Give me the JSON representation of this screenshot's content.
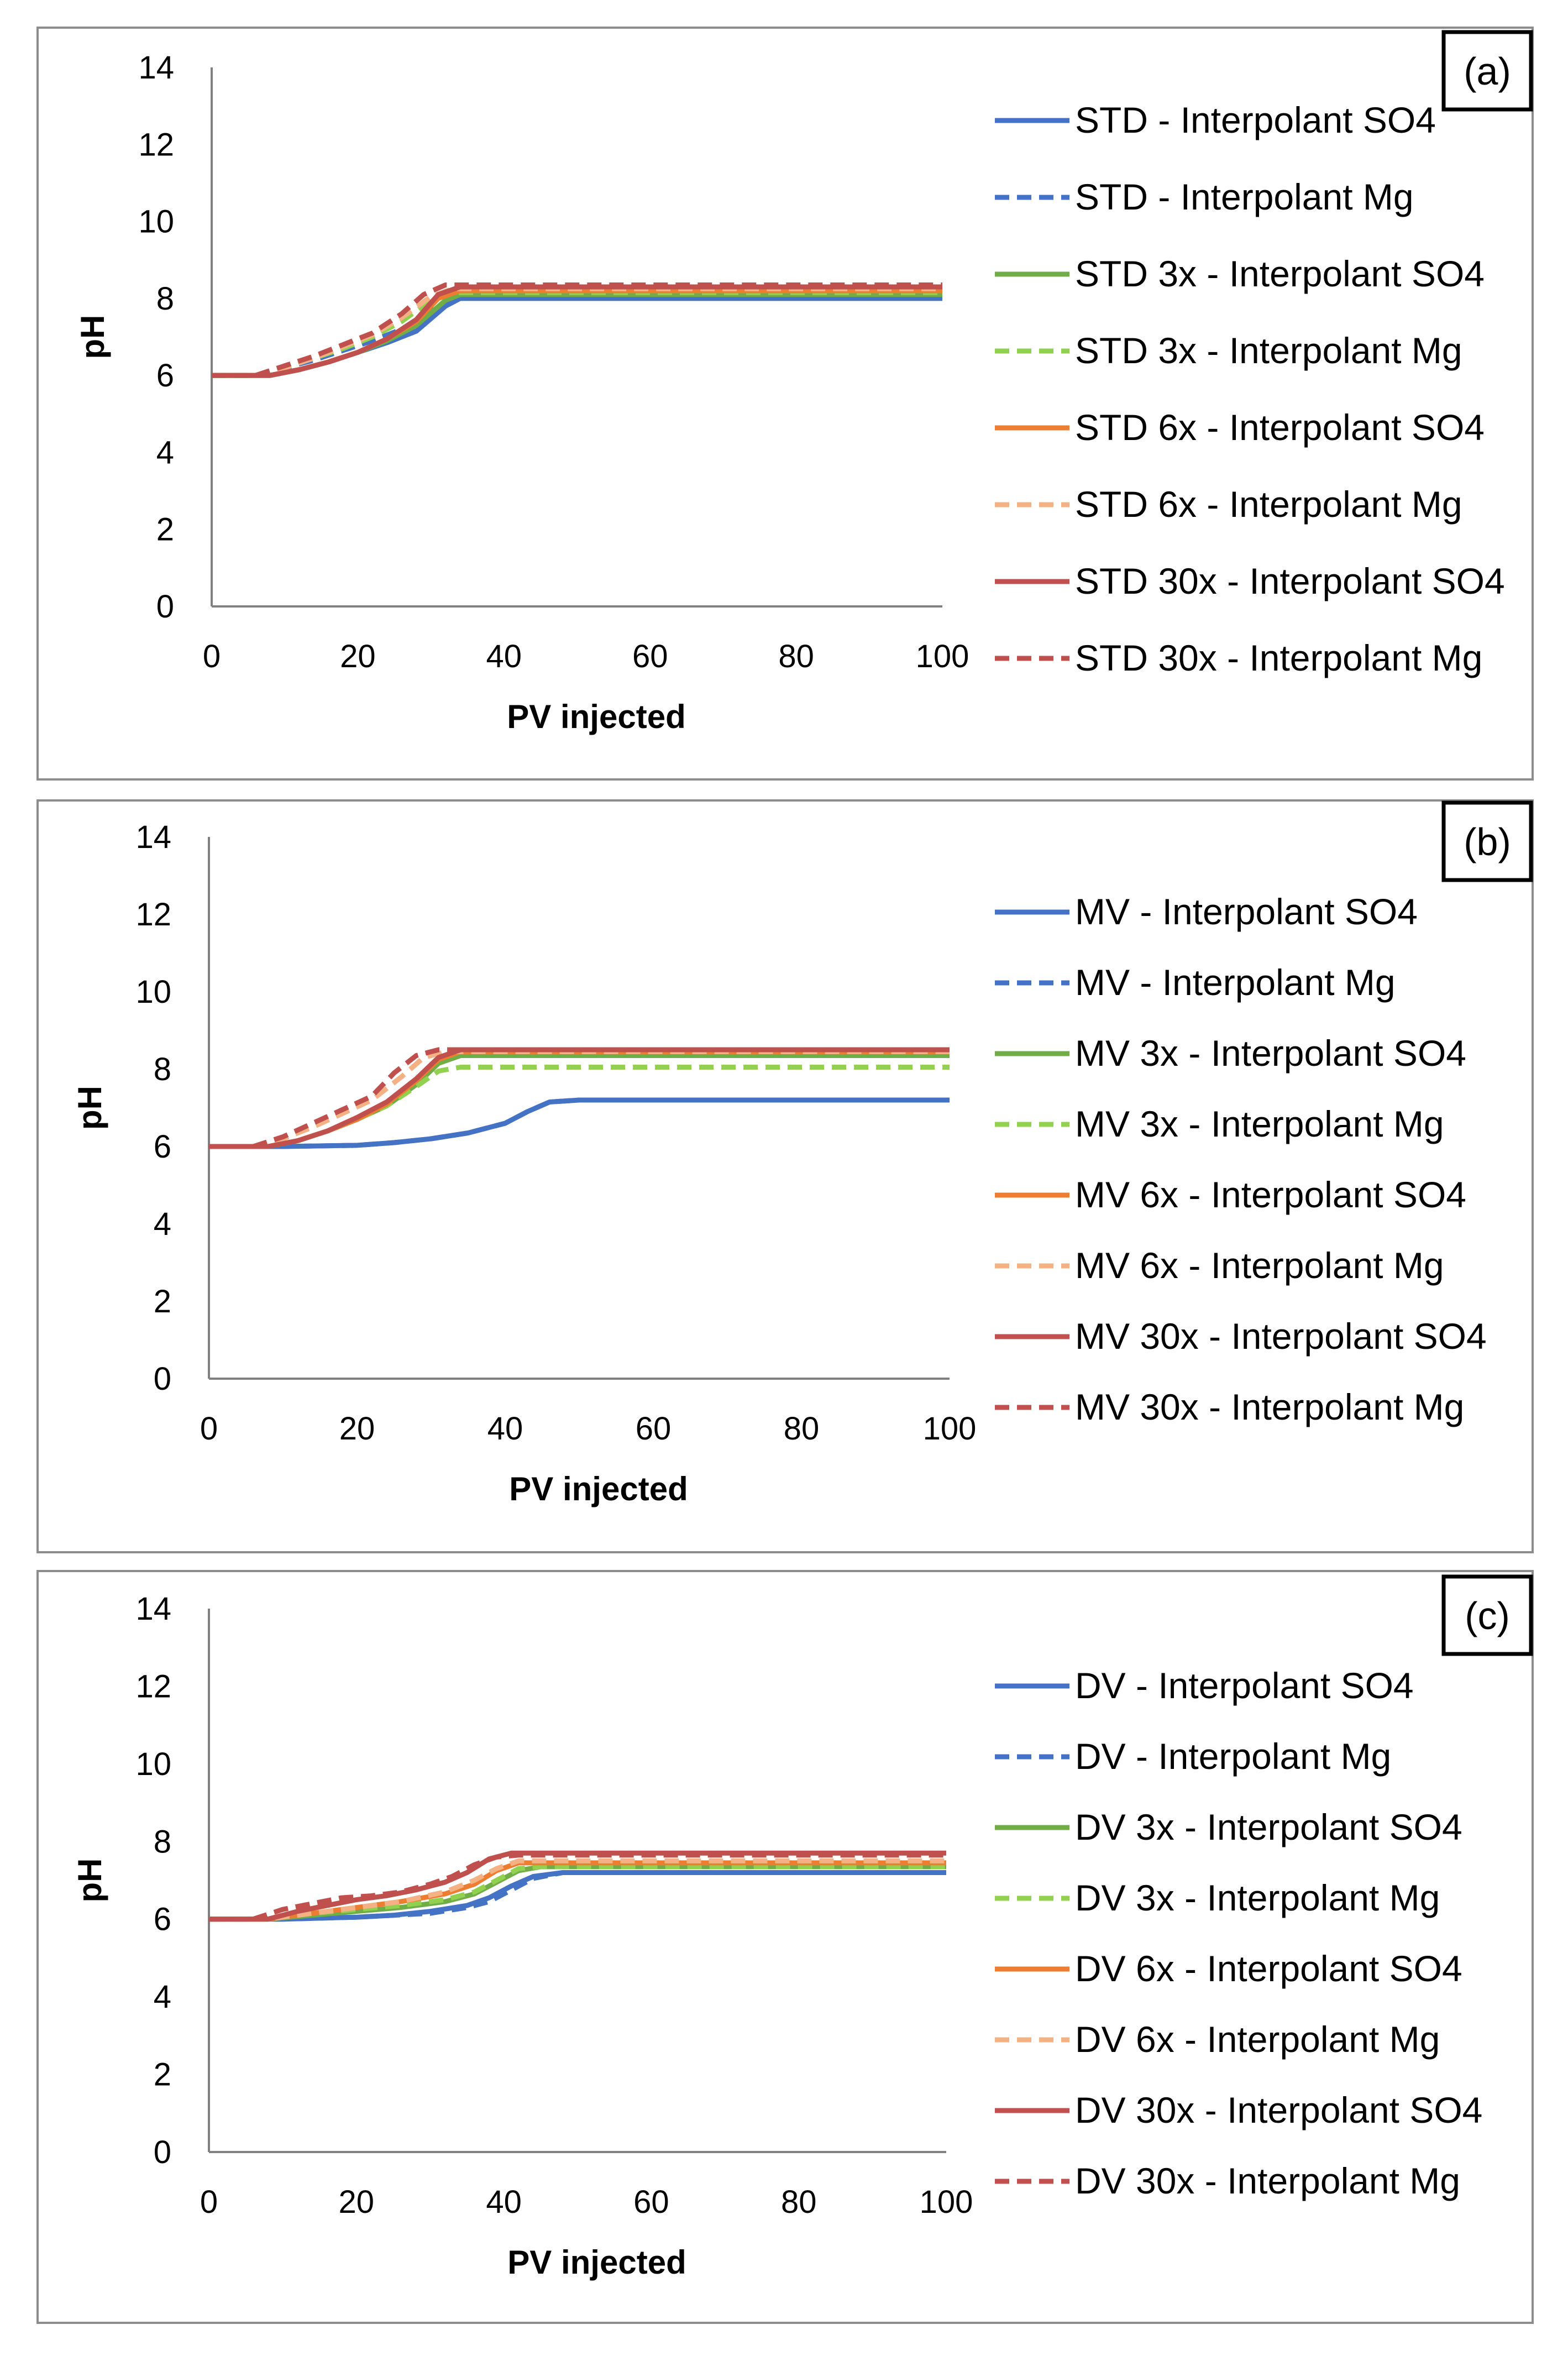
{
  "colors": {
    "blue": "#4472C4",
    "green": "#70AD47",
    "orange": "#ED7D31",
    "red": "#C0504D"
  },
  "chart_data": [
    {
      "type": "line",
      "panel_label": "(a)",
      "xlabel": "PV injected",
      "ylabel": "pH",
      "xlim": [
        0,
        100
      ],
      "ylim": [
        0,
        14
      ],
      "xticks": [
        "0",
        "20",
        "40",
        "60",
        "80",
        "100"
      ],
      "yticks": [
        "0",
        "2",
        "4",
        "6",
        "8",
        "10",
        "12",
        "14"
      ],
      "legend_position": "right",
      "series": [
        {
          "name": "STD - Interpolant SO4",
          "color": "#4472C4",
          "dash": false,
          "x": [
            0,
            8,
            12,
            16,
            20,
            24,
            28,
            32,
            34,
            36,
            100
          ],
          "y": [
            6.0,
            6.0,
            6.15,
            6.35,
            6.6,
            6.85,
            7.15,
            7.8,
            8.0,
            8.0,
            8.0
          ]
        },
        {
          "name": "STD - Interpolant Mg",
          "color": "#4472C4",
          "dash": true,
          "x": [
            0,
            6,
            10,
            14,
            18,
            22,
            26,
            30,
            33,
            35,
            100
          ],
          "y": [
            6.0,
            6.0,
            6.2,
            6.4,
            6.65,
            6.9,
            7.2,
            7.7,
            8.0,
            8.05,
            8.05
          ]
        },
        {
          "name": "STD 3x - Interpolant SO4",
          "color": "#70AD47",
          "dash": false,
          "x": [
            0,
            8,
            12,
            16,
            20,
            24,
            28,
            32,
            34,
            100
          ],
          "y": [
            6.0,
            6.0,
            6.15,
            6.35,
            6.6,
            6.9,
            7.3,
            7.95,
            8.1,
            8.1
          ]
        },
        {
          "name": "STD 3x - Interpolant Mg",
          "color": "#92D050",
          "dash": true,
          "x": [
            0,
            6,
            10,
            14,
            18,
            22,
            26,
            30,
            33,
            100
          ],
          "y": [
            6.0,
            6.0,
            6.2,
            6.45,
            6.7,
            7.0,
            7.4,
            7.95,
            8.15,
            8.15
          ]
        },
        {
          "name": "STD 6x - Interpolant SO4",
          "color": "#ED7D31",
          "dash": false,
          "x": [
            0,
            8,
            12,
            16,
            20,
            24,
            28,
            31,
            34,
            100
          ],
          "y": [
            6.0,
            6.0,
            6.15,
            6.35,
            6.6,
            6.95,
            7.4,
            8.0,
            8.2,
            8.2
          ]
        },
        {
          "name": "STD 6x - Interpolant Mg",
          "color": "#F4B183",
          "dash": true,
          "x": [
            0,
            6,
            10,
            14,
            18,
            22,
            26,
            30,
            33,
            100
          ],
          "y": [
            6.0,
            6.0,
            6.2,
            6.45,
            6.75,
            7.05,
            7.5,
            8.05,
            8.25,
            8.25
          ]
        },
        {
          "name": "STD 30x - Interpolant SO4",
          "color": "#C0504D",
          "dash": false,
          "x": [
            0,
            8,
            12,
            16,
            20,
            24,
            28,
            31,
            34,
            100
          ],
          "y": [
            6.0,
            6.0,
            6.15,
            6.35,
            6.6,
            6.95,
            7.45,
            8.1,
            8.3,
            8.3
          ]
        },
        {
          "name": "STD 30x - Interpolant Mg",
          "color": "#C0504D",
          "dash": true,
          "x": [
            0,
            6,
            10,
            14,
            18,
            22,
            26,
            29,
            32,
            100
          ],
          "y": [
            6.0,
            6.0,
            6.25,
            6.5,
            6.8,
            7.1,
            7.6,
            8.1,
            8.35,
            8.35
          ]
        }
      ]
    },
    {
      "type": "line",
      "panel_label": "(b)",
      "xlabel": "PV injected",
      "ylabel": "pH",
      "xlim": [
        0,
        100
      ],
      "ylim": [
        0,
        14
      ],
      "xticks": [
        "0",
        "20",
        "40",
        "60",
        "80",
        "100"
      ],
      "yticks": [
        "0",
        "2",
        "4",
        "6",
        "8",
        "10",
        "12",
        "14"
      ],
      "legend_position": "right",
      "series": [
        {
          "name": "MV - Interpolant SO4",
          "color": "#4472C4",
          "dash": false,
          "x": [
            0,
            10,
            20,
            25,
            30,
            35,
            40,
            43,
            46,
            50,
            100
          ],
          "y": [
            6.0,
            6.0,
            6.03,
            6.1,
            6.2,
            6.35,
            6.6,
            6.9,
            7.15,
            7.2,
            7.2
          ]
        },
        {
          "name": "MV - Interpolant Mg",
          "color": "#4472C4",
          "dash": true,
          "x": [
            0,
            10,
            20,
            25,
            30,
            35,
            40,
            43,
            46,
            50,
            100
          ],
          "y": [
            6.0,
            6.0,
            6.03,
            6.1,
            6.2,
            6.35,
            6.6,
            6.9,
            7.15,
            7.2,
            7.2
          ]
        },
        {
          "name": "MV 3x - Interpolant SO4",
          "color": "#70AD47",
          "dash": false,
          "x": [
            0,
            8,
            12,
            16,
            20,
            24,
            28,
            31,
            34,
            100
          ],
          "y": [
            6.0,
            6.0,
            6.15,
            6.4,
            6.7,
            7.05,
            7.6,
            8.15,
            8.35,
            8.35
          ]
        },
        {
          "name": "MV 3x - Interpolant Mg",
          "color": "#92D050",
          "dash": true,
          "x": [
            0,
            8,
            12,
            16,
            20,
            24,
            28,
            31,
            34,
            100
          ],
          "y": [
            6.0,
            6.0,
            6.15,
            6.4,
            6.7,
            7.05,
            7.55,
            7.95,
            8.05,
            8.05
          ]
        },
        {
          "name": "MV 6x - Interpolant SO4",
          "color": "#ED7D31",
          "dash": false,
          "x": [
            0,
            8,
            12,
            16,
            20,
            24,
            28,
            31,
            34,
            100
          ],
          "y": [
            6.0,
            6.0,
            6.15,
            6.4,
            6.7,
            7.1,
            7.7,
            8.25,
            8.45,
            8.45
          ]
        },
        {
          "name": "MV 6x - Interpolant Mg",
          "color": "#F4B183",
          "dash": true,
          "x": [
            0,
            6,
            10,
            14,
            18,
            22,
            26,
            29,
            32,
            100
          ],
          "y": [
            6.0,
            6.0,
            6.2,
            6.5,
            6.85,
            7.2,
            7.8,
            8.3,
            8.45,
            8.45
          ]
        },
        {
          "name": "MV 30x - Interpolant SO4",
          "color": "#C0504D",
          "dash": false,
          "x": [
            0,
            8,
            12,
            16,
            20,
            24,
            28,
            31,
            34,
            100
          ],
          "y": [
            6.0,
            6.0,
            6.15,
            6.4,
            6.75,
            7.15,
            7.75,
            8.3,
            8.5,
            8.5
          ]
        },
        {
          "name": "MV 30x - Interpolant Mg",
          "color": "#C0504D",
          "dash": true,
          "x": [
            0,
            6,
            10,
            14,
            18,
            22,
            25,
            28,
            31,
            100
          ],
          "y": [
            6.0,
            6.0,
            6.25,
            6.6,
            6.95,
            7.3,
            7.9,
            8.35,
            8.5,
            8.5
          ]
        }
      ]
    },
    {
      "type": "line",
      "panel_label": "(c)",
      "xlabel": "PV injected",
      "ylabel": "pH",
      "xlim": [
        0,
        100
      ],
      "ylim": [
        0,
        14
      ],
      "xticks": [
        "0",
        "20",
        "40",
        "60",
        "80",
        "100"
      ],
      "yticks": [
        "0",
        "2",
        "4",
        "6",
        "8",
        "10",
        "12",
        "14"
      ],
      "legend_position": "right",
      "series": [
        {
          "name": "DV - Interpolant SO4",
          "color": "#4472C4",
          "dash": false,
          "x": [
            0,
            10,
            20,
            25,
            30,
            35,
            38,
            41,
            44,
            48,
            100
          ],
          "y": [
            6.0,
            6.0,
            6.05,
            6.1,
            6.2,
            6.35,
            6.55,
            6.85,
            7.1,
            7.2,
            7.2
          ]
        },
        {
          "name": "DV - Interpolant Mg",
          "color": "#4472C4",
          "dash": true,
          "x": [
            0,
            10,
            20,
            25,
            30,
            35,
            38,
            41,
            44,
            48,
            100
          ],
          "y": [
            6.0,
            6.0,
            6.05,
            6.1,
            6.15,
            6.3,
            6.45,
            6.75,
            7.05,
            7.2,
            7.2
          ]
        },
        {
          "name": "DV 3x - Interpolant SO4",
          "color": "#70AD47",
          "dash": false,
          "x": [
            0,
            8,
            14,
            20,
            26,
            32,
            36,
            39,
            42,
            45,
            100
          ],
          "y": [
            6.0,
            6.0,
            6.1,
            6.2,
            6.3,
            6.45,
            6.65,
            6.95,
            7.25,
            7.35,
            7.35
          ]
        },
        {
          "name": "DV 3x - Interpolant Mg",
          "color": "#92D050",
          "dash": true,
          "x": [
            0,
            8,
            14,
            20,
            26,
            32,
            36,
            39,
            42,
            45,
            100
          ],
          "y": [
            6.0,
            6.0,
            6.15,
            6.25,
            6.35,
            6.5,
            6.7,
            7.0,
            7.3,
            7.35,
            7.35
          ]
        },
        {
          "name": "DV 6x - Interpolant SO4",
          "color": "#ED7D31",
          "dash": false,
          "x": [
            0,
            8,
            14,
            20,
            26,
            32,
            36,
            39,
            42,
            100
          ],
          "y": [
            6.0,
            6.0,
            6.15,
            6.3,
            6.45,
            6.65,
            6.9,
            7.25,
            7.45,
            7.45
          ]
        },
        {
          "name": "DV 6x - Interpolant Mg",
          "color": "#F4B183",
          "dash": true,
          "x": [
            0,
            8,
            14,
            20,
            26,
            32,
            36,
            39,
            42,
            100
          ],
          "y": [
            6.0,
            6.0,
            6.15,
            6.3,
            6.45,
            6.7,
            7.0,
            7.3,
            7.5,
            7.5
          ]
        },
        {
          "name": "DV 30x - Interpolant SO4",
          "color": "#C0504D",
          "dash": false,
          "x": [
            0,
            8,
            12,
            16,
            20,
            24,
            28,
            32,
            35,
            38,
            41,
            100
          ],
          "y": [
            6.0,
            6.0,
            6.2,
            6.35,
            6.5,
            6.6,
            6.75,
            6.95,
            7.2,
            7.55,
            7.7,
            7.7
          ]
        },
        {
          "name": "DV 30x - Interpolant Mg",
          "color": "#C0504D",
          "dash": true,
          "x": [
            0,
            6,
            10,
            14,
            18,
            22,
            26,
            30,
            33,
            36,
            39,
            42,
            100
          ],
          "y": [
            6.0,
            6.0,
            6.25,
            6.4,
            6.55,
            6.6,
            6.7,
            6.9,
            7.1,
            7.4,
            7.6,
            7.65,
            7.65
          ]
        }
      ]
    }
  ]
}
